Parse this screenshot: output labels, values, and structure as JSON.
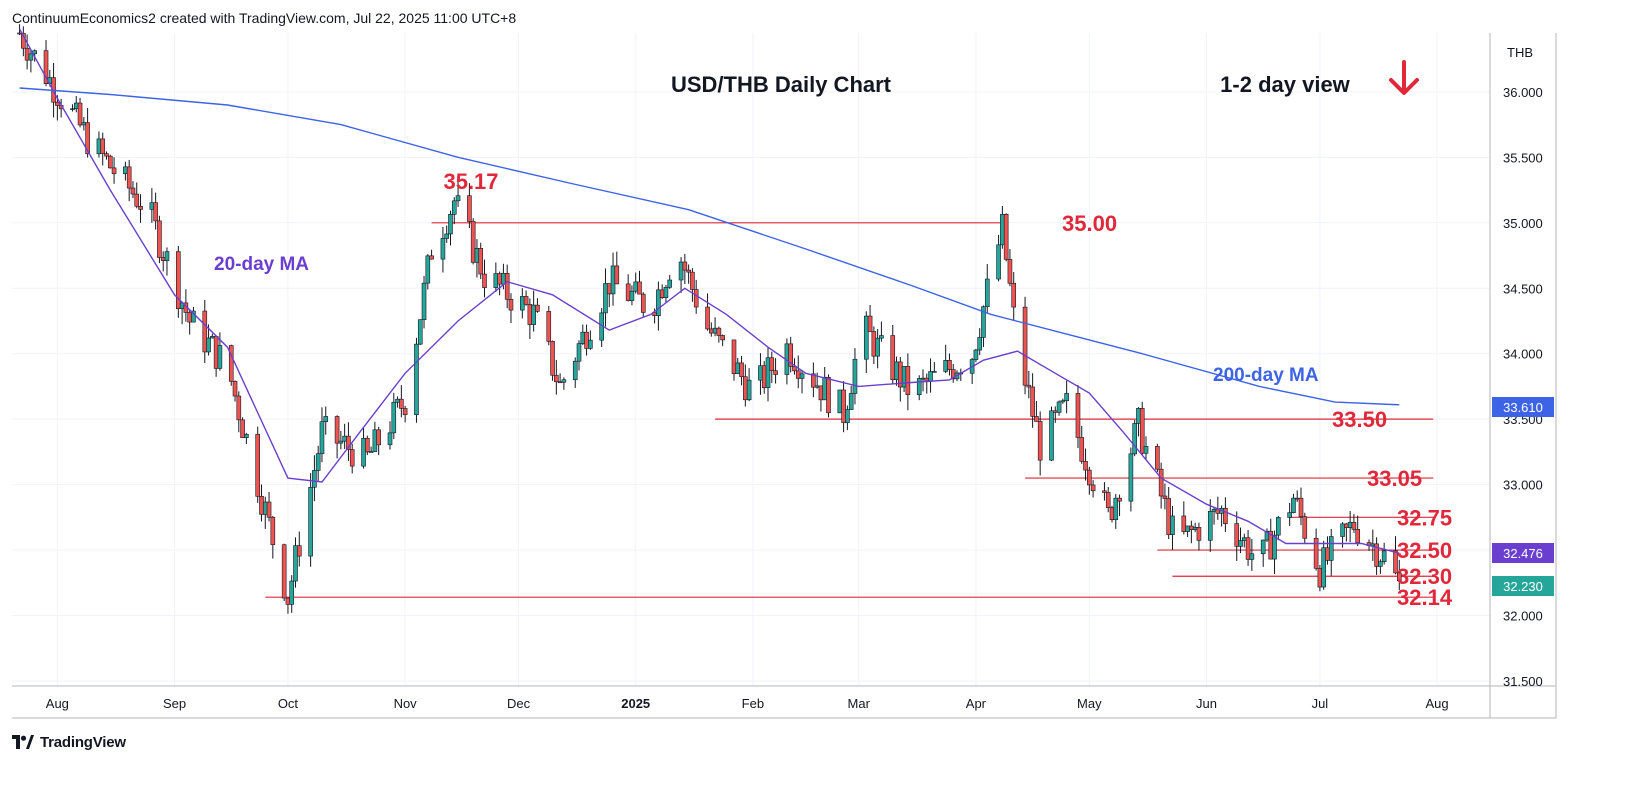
{
  "header": {
    "attribution": "ContinuumEconomics2 created with TradingView.com, Jul 22, 2025 11:00 UTC+8"
  },
  "footer": {
    "brand": "TradingView",
    "logo_icon": "tradingview-logo-icon"
  },
  "colors": {
    "up": "#26a69a",
    "down": "#ef5350",
    "candle_up_fill": "#26a69a",
    "candle_down_fill": "#ef5350",
    "ma20": "#6a3fcf",
    "ma200": "#3d63e6",
    "level": "#e0283a",
    "arrow": "#e0283a"
  },
  "chart_data": {
    "type": "candlestick",
    "title": "USD/THB Daily Chart",
    "view_label": "1-2 day view",
    "view_direction_icon": "arrow-down-icon",
    "currency_label": "THB",
    "ylim": [
      31.5,
      36.5
    ],
    "y_ticks": [
      "31.500",
      "32.000",
      "32.500",
      "33.000",
      "33.500",
      "34.000",
      "34.500",
      "35.000",
      "35.500",
      "36.000"
    ],
    "x_ticks": [
      {
        "label": "Aug",
        "date": "2024-08-01"
      },
      {
        "label": "Sep",
        "date": "2024-09-01"
      },
      {
        "label": "Oct",
        "date": "2024-10-01"
      },
      {
        "label": "Nov",
        "date": "2024-11-01"
      },
      {
        "label": "Dec",
        "date": "2024-12-01"
      },
      {
        "label": "2025",
        "date": "2025-01-01",
        "bold": true
      },
      {
        "label": "Feb",
        "date": "2025-02-01"
      },
      {
        "label": "Mar",
        "date": "2025-03-01"
      },
      {
        "label": "Apr",
        "date": "2025-04-01"
      },
      {
        "label": "May",
        "date": "2025-05-01"
      },
      {
        "label": "Jun",
        "date": "2025-06-01"
      },
      {
        "label": "Jul",
        "date": "2025-07-01"
      },
      {
        "label": "Aug",
        "date": "2025-08-01"
      }
    ],
    "price_badges": [
      {
        "value": "33.610",
        "color": "#3d63e6"
      },
      {
        "value": "32.476",
        "color": "#6a3fcf"
      },
      {
        "value": "32.230",
        "color": "#26a69a"
      }
    ],
    "series": [
      {
        "name": "20-day MA",
        "color": "#6a3fcf",
        "points": [
          [
            "2024-07-22",
            36.48
          ],
          [
            "2024-08-01",
            35.95
          ],
          [
            "2024-08-15",
            35.25
          ],
          [
            "2024-09-01",
            34.45
          ],
          [
            "2024-09-15",
            34.05
          ],
          [
            "2024-10-01",
            33.05
          ],
          [
            "2024-10-10",
            33.02
          ],
          [
            "2024-10-20",
            33.4
          ],
          [
            "2024-11-01",
            33.85
          ],
          [
            "2024-11-15",
            34.25
          ],
          [
            "2024-11-28",
            34.55
          ],
          [
            "2024-12-10",
            34.45
          ],
          [
            "2024-12-25",
            34.18
          ],
          [
            "2025-01-05",
            34.3
          ],
          [
            "2025-01-14",
            34.5
          ],
          [
            "2025-01-25",
            34.3
          ],
          [
            "2025-02-05",
            34.05
          ],
          [
            "2025-02-15",
            33.85
          ],
          [
            "2025-03-01",
            33.75
          ],
          [
            "2025-03-15",
            33.78
          ],
          [
            "2025-03-25",
            33.8
          ],
          [
            "2025-04-03",
            33.95
          ],
          [
            "2025-04-12",
            34.02
          ],
          [
            "2025-04-22",
            33.85
          ],
          [
            "2025-05-01",
            33.7
          ],
          [
            "2025-05-10",
            33.4
          ],
          [
            "2025-05-20",
            33.05
          ],
          [
            "2025-06-01",
            32.85
          ],
          [
            "2025-06-12",
            32.72
          ],
          [
            "2025-06-22",
            32.55
          ],
          [
            "2025-07-01",
            32.55
          ],
          [
            "2025-07-12",
            32.55
          ],
          [
            "2025-07-22",
            32.476
          ]
        ]
      },
      {
        "name": "200-day MA",
        "color": "#3d63e6",
        "points": [
          [
            "2024-07-22",
            36.03
          ],
          [
            "2024-08-15",
            35.98
          ],
          [
            "2024-09-15",
            35.9
          ],
          [
            "2024-10-15",
            35.75
          ],
          [
            "2024-11-15",
            35.5
          ],
          [
            "2024-12-15",
            35.3
          ],
          [
            "2025-01-15",
            35.1
          ],
          [
            "2025-02-15",
            34.8
          ],
          [
            "2025-03-15",
            34.52
          ],
          [
            "2025-04-05",
            34.3
          ],
          [
            "2025-04-25",
            34.15
          ],
          [
            "2025-05-15",
            34.0
          ],
          [
            "2025-06-15",
            33.75
          ],
          [
            "2025-07-05",
            33.63
          ],
          [
            "2025-07-22",
            33.61
          ]
        ]
      }
    ],
    "ohlc_keypoints": [
      [
        "2024-07-22",
        36.45
      ],
      [
        "2024-08-10",
        35.6
      ],
      [
        "2024-08-25",
        35.1
      ],
      [
        "2024-09-05",
        34.25
      ],
      [
        "2024-09-15",
        33.9
      ],
      [
        "2024-10-01",
        32.14
      ],
      [
        "2024-10-10",
        33.4
      ],
      [
        "2024-10-22",
        33.2
      ],
      [
        "2024-11-01",
        33.65
      ],
      [
        "2024-11-08",
        34.8
      ],
      [
        "2024-11-14",
        35.17
      ],
      [
        "2024-11-22",
        34.6
      ],
      [
        "2024-12-05",
        34.3
      ],
      [
        "2024-12-12",
        33.75
      ],
      [
        "2024-12-25",
        34.55
      ],
      [
        "2025-01-05",
        34.35
      ],
      [
        "2025-01-12",
        34.8
      ],
      [
        "2025-01-20",
        34.2
      ],
      [
        "2025-02-01",
        33.7
      ],
      [
        "2025-02-10",
        34.05
      ],
      [
        "2025-02-25",
        33.55
      ],
      [
        "2025-03-02",
        34.2
      ],
      [
        "2025-03-15",
        33.7
      ],
      [
        "2025-03-31",
        34.0
      ],
      [
        "2025-04-08",
        34.95
      ],
      [
        "2025-04-12",
        34.05
      ],
      [
        "2025-04-18",
        33.3
      ],
      [
        "2025-04-25",
        33.6
      ],
      [
        "2025-05-06",
        32.75
      ],
      [
        "2025-05-14",
        33.45
      ],
      [
        "2025-05-24",
        32.55
      ],
      [
        "2025-06-05",
        32.8
      ],
      [
        "2025-06-15",
        32.4
      ],
      [
        "2025-06-24",
        32.9
      ],
      [
        "2025-07-01",
        32.35
      ],
      [
        "2025-07-10",
        32.7
      ],
      [
        "2025-07-18",
        32.45
      ],
      [
        "2025-07-22",
        32.23
      ]
    ],
    "levels": [
      {
        "value": 32.14,
        "label": "32.14",
        "start": "2024-09-25",
        "end": "2025-07-31"
      },
      {
        "value": 32.3,
        "label": "32.30",
        "start": "2025-05-23",
        "end": "2025-07-31"
      },
      {
        "value": 32.5,
        "label": "32.50",
        "start": "2025-05-19",
        "end": "2025-07-31"
      },
      {
        "value": 32.75,
        "label": "32.75",
        "start": "2025-06-23",
        "end": "2025-07-31"
      },
      {
        "value": 33.05,
        "label": "33.05",
        "start": "2025-04-14",
        "end": "2025-07-31"
      },
      {
        "value": 33.5,
        "label": "33.50",
        "start": "2025-01-22",
        "end": "2025-07-31"
      },
      {
        "value": 35.0,
        "label": "35.00",
        "start": "2024-11-08",
        "end": "2025-04-09"
      }
    ],
    "annotations": [
      {
        "text": "35.17",
        "kind": "high",
        "date": "2024-11-14",
        "value": 35.17
      },
      {
        "text": "20-day MA",
        "kind": "ma20"
      },
      {
        "text": "200-day MA",
        "kind": "ma200"
      }
    ]
  }
}
